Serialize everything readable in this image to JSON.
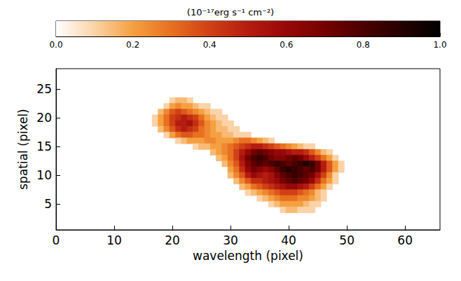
{
  "chart_data": {
    "type": "heatmap",
    "x_label": "wavelength (pixel)",
    "y_label": "spatial (pixel)",
    "xlim": [
      0,
      66
    ],
    "xticks": [
      0,
      10,
      20,
      30,
      40,
      50,
      60
    ],
    "ylim": [
      0.5,
      28.5
    ],
    "yticks": [
      5,
      10,
      15,
      20,
      25
    ],
    "colorbar": {
      "label": "(10⁻¹⁷erg s⁻¹ cm⁻²)",
      "range": [
        0,
        1
      ],
      "ticks": [
        {
          "value": 0,
          "label": "0.0"
        },
        {
          "value": 0.2,
          "label": "0.2"
        },
        {
          "value": 0.4,
          "label": "0.4"
        },
        {
          "value": 0.6,
          "label": "0.6"
        },
        {
          "value": 0.8,
          "label": "0.8"
        },
        {
          "value": 1,
          "label": "1.0"
        }
      ]
    },
    "cells": [
      {
        "y": 23,
        "x_start": 20,
        "values": [
          0.1,
          0.15,
          0.15,
          0.1
        ]
      },
      {
        "y": 22,
        "x_start": 19,
        "values": [
          0.1,
          0.2,
          0.25,
          0.2,
          0.2,
          0.15,
          0.1,
          0.1
        ]
      },
      {
        "y": 21,
        "x_start": 18,
        "values": [
          0.15,
          0.25,
          0.35,
          0.4,
          0.35,
          0.3,
          0.25,
          0.2,
          0.15,
          0.1,
          0.1
        ]
      },
      {
        "y": 20,
        "x_start": 17,
        "values": [
          0.1,
          0.2,
          0.3,
          0.4,
          0.45,
          0.5,
          0.45,
          0.4,
          0.3,
          0.2,
          0.15,
          0.1,
          0.1
        ]
      },
      {
        "y": 19,
        "x_start": 17,
        "values": [
          0.1,
          0.2,
          0.3,
          0.4,
          0.5,
          0.5,
          0.55,
          0.45,
          0.35,
          0.25,
          0.2,
          0.15,
          0.1,
          0.1
        ]
      },
      {
        "y": 18,
        "x_start": 18,
        "values": [
          0.15,
          0.25,
          0.35,
          0.45,
          0.5,
          0.45,
          0.4,
          0.3,
          0.25,
          0.2,
          0.15,
          0.15,
          0.1,
          0.1
        ]
      },
      {
        "y": 17,
        "x_start": 19,
        "values": [
          0.1,
          0.2,
          0.3,
          0.35,
          0.35,
          0.3,
          0.3,
          0.25,
          0.2,
          0.2,
          0.15,
          0.15,
          0.1,
          0.1,
          0.1
        ]
      },
      {
        "y": 16,
        "x_start": 21,
        "values": [
          0.1,
          0.15,
          0.2,
          0.2,
          0.2,
          0.25,
          0.25,
          0.2,
          0.2,
          0.2,
          0.25,
          0.3,
          0.3,
          0.25,
          0.2,
          0.15,
          0.1
        ]
      },
      {
        "y": 15,
        "x_start": 24,
        "values": [
          0.1,
          0.15,
          0.15,
          0.2,
          0.2,
          0.25,
          0.3,
          0.35,
          0.4,
          0.45,
          0.5,
          0.5,
          0.45,
          0.4,
          0.35,
          0.3,
          0.25,
          0.2,
          0.15,
          0.1,
          0.1
        ]
      },
      {
        "y": 14,
        "x_start": 27,
        "values": [
          0.15,
          0.2,
          0.25,
          0.3,
          0.4,
          0.5,
          0.6,
          0.7,
          0.75,
          0.7,
          0.65,
          0.6,
          0.6,
          0.55,
          0.5,
          0.5,
          0.45,
          0.35,
          0.25,
          0.15,
          0.1
        ]
      },
      {
        "y": 13,
        "x_start": 28,
        "values": [
          0.15,
          0.2,
          0.3,
          0.4,
          0.55,
          0.7,
          0.8,
          0.85,
          0.8,
          0.7,
          0.65,
          0.65,
          0.7,
          0.75,
          0.7,
          0.6,
          0.5,
          0.4,
          0.3,
          0.2,
          0.1
        ]
      },
      {
        "y": 12,
        "x_start": 29,
        "values": [
          0.15,
          0.25,
          0.35,
          0.5,
          0.65,
          0.75,
          0.8,
          0.75,
          0.8,
          0.85,
          0.8,
          0.75,
          0.8,
          0.85,
          0.9,
          0.85,
          0.7,
          0.5,
          0.35,
          0.2,
          0.1
        ]
      },
      {
        "y": 11,
        "x_start": 30,
        "values": [
          0.2,
          0.3,
          0.45,
          0.6,
          0.7,
          0.65,
          0.6,
          0.65,
          0.75,
          0.85,
          0.9,
          0.85,
          0.8,
          0.75,
          0.8,
          0.7,
          0.5,
          0.35,
          0.2,
          0.1
        ]
      },
      {
        "y": 10,
        "x_start": 30,
        "values": [
          0.15,
          0.25,
          0.35,
          0.5,
          0.6,
          0.55,
          0.5,
          0.55,
          0.65,
          0.75,
          0.8,
          0.85,
          0.8,
          0.75,
          0.7,
          0.55,
          0.4,
          0.25,
          0.1
        ]
      },
      {
        "y": 9,
        "x_start": 31,
        "values": [
          0.15,
          0.25,
          0.35,
          0.45,
          0.45,
          0.5,
          0.55,
          0.6,
          0.7,
          0.75,
          0.8,
          0.75,
          0.7,
          0.6,
          0.45,
          0.3,
          0.2,
          0.1
        ]
      },
      {
        "y": 8,
        "x_start": 32,
        "values": [
          0.15,
          0.2,
          0.3,
          0.35,
          0.4,
          0.45,
          0.5,
          0.55,
          0.6,
          0.6,
          0.55,
          0.5,
          0.4,
          0.3,
          0.2,
          0.1
        ]
      },
      {
        "y": 7,
        "x_start": 33,
        "values": [
          0.1,
          0.15,
          0.2,
          0.25,
          0.3,
          0.35,
          0.4,
          0.4,
          0.4,
          0.35,
          0.3,
          0.25,
          0.15,
          0.1
        ]
      },
      {
        "y": 6,
        "x_start": 35,
        "values": [
          0.1,
          0.15,
          0.2,
          0.25,
          0.3,
          0.3,
          0.3,
          0.25,
          0.25,
          0.2,
          0.15,
          0.1
        ]
      },
      {
        "y": 5,
        "x_start": 37,
        "values": [
          0.1,
          0.15,
          0.2,
          0.2,
          0.2,
          0.2,
          0.15,
          0.1,
          0.1
        ]
      },
      {
        "y": 4,
        "x_start": 39,
        "values": [
          0.1,
          0.15,
          0.15,
          0.1,
          0.1,
          0.1
        ]
      }
    ]
  }
}
